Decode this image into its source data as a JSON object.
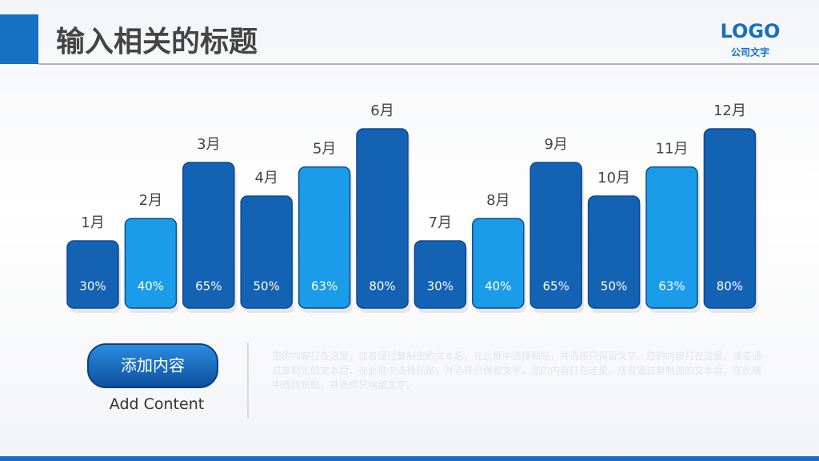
{
  "header": {
    "title": "输入相关的标题",
    "logo": "LOGO",
    "company": "公司文字"
  },
  "chart_data": {
    "type": "bar",
    "categories": [
      "1月",
      "2月",
      "3月",
      "4月",
      "5月",
      "6月",
      "7月",
      "8月",
      "9月",
      "10月",
      "11月",
      "12月"
    ],
    "values": [
      30,
      40,
      65,
      50,
      63,
      80,
      30,
      40,
      65,
      50,
      63,
      80
    ],
    "value_labels": [
      "30%",
      "40%",
      "65%",
      "50%",
      "63%",
      "80%",
      "30%",
      "40%",
      "65%",
      "50%",
      "63%",
      "80%"
    ],
    "colors": [
      "#1462b4",
      "#1a9ce8",
      "#1462b4",
      "#1462b4",
      "#1a9ce8",
      "#1462b4",
      "#1462b4",
      "#1a9ce8",
      "#1462b4",
      "#1462b4",
      "#1a9ce8",
      "#1462b4"
    ]
  },
  "button": {
    "label": "添加内容",
    "caption": "Add Content"
  },
  "paragraph": "您的内容打在这里，或者通过复制您的文本后，在此框中选择粘贴，并选择只保留文字。您的内容打在这里，或者通过复制您的文本后，在此框中选择粘贴，并选择只保留文字。您的内容打在这里，或者通过复制您的文本后，在此框中选择粘贴，并选择只保留文字。"
}
